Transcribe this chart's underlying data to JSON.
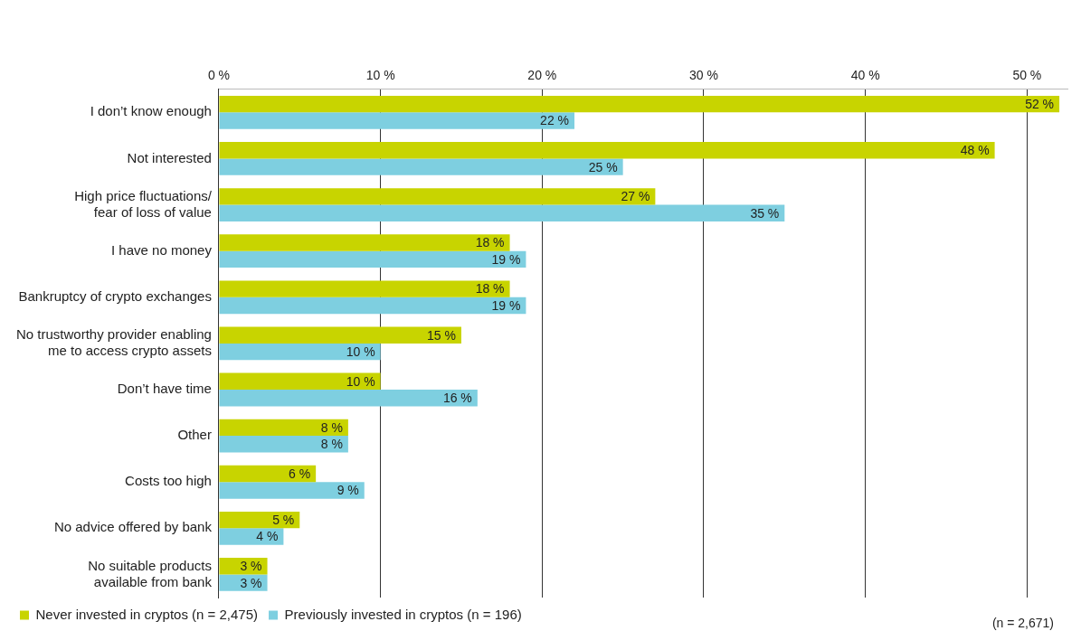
{
  "chart_data": {
    "type": "bar",
    "orientation": "horizontal",
    "categories": [
      "I don’t know enough",
      "Not interested",
      "High price fluctuations/\nfear of loss of value",
      "I have no money",
      "Bankruptcy of crypto exchanges",
      "No trustworthy provider enabling\nme to access crypto assets",
      "Don’t have time",
      "Other",
      "Costs too high",
      "No advice offered by bank",
      "No suitable products\navailable from bank"
    ],
    "series": [
      {
        "name": "Never invested in cryptos (n = 2,475)",
        "color": "#c8d400",
        "values": [
          52,
          48,
          27,
          18,
          18,
          15,
          10,
          8,
          6,
          5,
          3
        ],
        "value_labels": [
          "52 %",
          "48 %",
          "27 %",
          "18 %",
          "18 %",
          "15 %",
          "10 %",
          "8 %",
          "6 %",
          "5 %",
          "3 %"
        ]
      },
      {
        "name": "Previously invested in cryptos (n = 196)",
        "color": "#7ecfe0",
        "values": [
          22,
          25,
          35,
          19,
          19,
          10,
          16,
          8,
          9,
          4,
          3
        ],
        "value_labels": [
          "22 %",
          "25 %",
          "35 %",
          "19 %",
          "19 %",
          "10 %",
          "16 %",
          "8 %",
          "9 %",
          "4 %",
          "3 %"
        ]
      }
    ],
    "xlim": [
      0,
      52.5
    ],
    "xticks": [
      {
        "value": 0,
        "label": "0 %"
      },
      {
        "value": 10,
        "label": "10 %"
      },
      {
        "value": 20,
        "label": "20 %"
      },
      {
        "value": 30,
        "label": "30 %"
      },
      {
        "value": 40,
        "label": "40 %"
      },
      {
        "value": 50,
        "label": "50 %"
      }
    ],
    "grid": "x",
    "legend": "bottom left",
    "annotations": [
      "(n = 2,671)"
    ]
  }
}
